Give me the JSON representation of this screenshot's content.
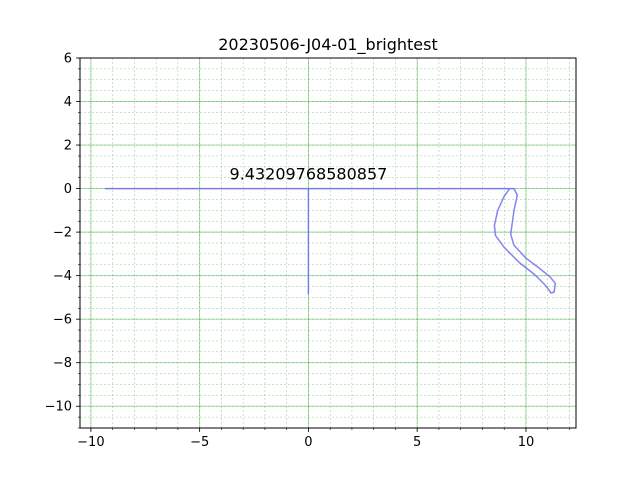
{
  "chart_data": {
    "type": "line",
    "title": "20230506-J04-01_brightest",
    "xlabel": "",
    "ylabel": "",
    "xlim": [
      -10.5,
      12.3
    ],
    "ylim": [
      -11,
      6
    ],
    "x_ticks": [
      -10,
      -5,
      0,
      5,
      10
    ],
    "x_tick_labels": [
      "−10",
      "−5",
      "0",
      "5",
      "10"
    ],
    "y_ticks": [
      6,
      4,
      2,
      0,
      -2,
      -4,
      -6,
      -8,
      -10
    ],
    "y_tick_labels": [
      "6",
      "4",
      "2",
      "0",
      "−2",
      "−4",
      "−6",
      "−8",
      "−10"
    ],
    "grid": true,
    "minor_grid": true,
    "grid_color": "#2ca02c",
    "line_color": "#6e6ef0",
    "series": [
      {
        "x": [
          -9.35,
          9.25
        ],
        "y": [
          0,
          0
        ]
      },
      {
        "x": [
          0,
          0
        ],
        "y": [
          0,
          -4.85
        ]
      },
      {
        "x": [
          9.25,
          9.45,
          9.6,
          9.45,
          9.3,
          9.45,
          10.0,
          10.6,
          11.1,
          11.35,
          11.3,
          11.15,
          11.05,
          10.9,
          10.4,
          9.7,
          9.0,
          8.6,
          8.55,
          8.7,
          9.0,
          9.25
        ],
        "y": [
          0,
          0,
          -0.3,
          -1.0,
          -2.1,
          -2.6,
          -3.2,
          -3.65,
          -4.05,
          -4.35,
          -4.75,
          -4.8,
          -4.65,
          -4.45,
          -3.95,
          -3.4,
          -2.7,
          -2.15,
          -1.7,
          -1.0,
          -0.35,
          0
        ]
      }
    ],
    "annotations": [
      {
        "text": "9.43209768580857",
        "x": 0,
        "y": 0.42
      }
    ]
  }
}
